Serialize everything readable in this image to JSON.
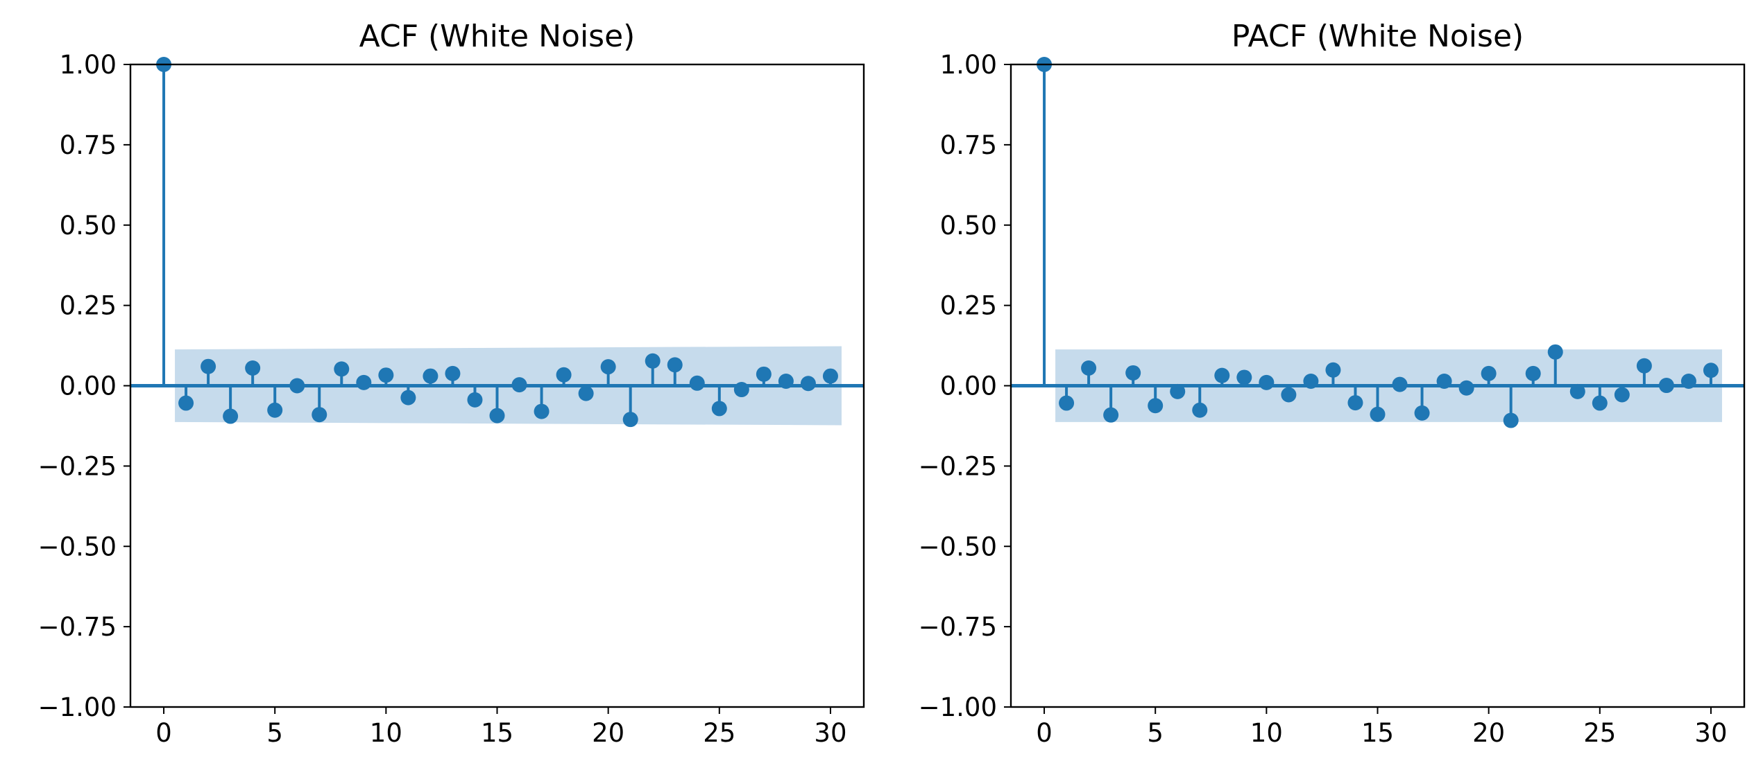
{
  "chart_data": [
    {
      "type": "stem",
      "title": "ACF (White Noise)",
      "xlabel": "",
      "ylabel": "",
      "xlim": [
        -1.5,
        31.5
      ],
      "ylim": [
        -1.0,
        1.0
      ],
      "x_ticks": [
        0,
        5,
        10,
        15,
        20,
        25,
        30
      ],
      "x_tick_labels": [
        "0",
        "5",
        "10",
        "15",
        "20",
        "25",
        "30"
      ],
      "y_ticks": [
        1.0,
        0.75,
        0.5,
        0.25,
        0.0,
        -0.25,
        -0.5,
        -0.75,
        -1.0
      ],
      "y_tick_labels": [
        "1.00",
        "0.75",
        "0.50",
        "0.25",
        "0.00",
        "−0.25",
        "−0.50",
        "−0.75",
        "−1.00"
      ],
      "grid": false,
      "x": [
        0,
        1,
        2,
        3,
        4,
        5,
        6,
        7,
        8,
        9,
        10,
        11,
        12,
        13,
        14,
        15,
        16,
        17,
        18,
        19,
        20,
        21,
        22,
        23,
        24,
        25,
        26,
        27,
        28,
        29,
        30
      ],
      "values": [
        1.0,
        -0.054,
        0.06,
        -0.095,
        0.055,
        -0.076,
        0.0,
        -0.09,
        0.052,
        0.01,
        0.033,
        -0.037,
        0.03,
        0.038,
        -0.044,
        -0.093,
        0.003,
        -0.08,
        0.034,
        -0.024,
        0.059,
        -0.105,
        0.077,
        0.065,
        0.008,
        -0.071,
        -0.012,
        0.036,
        0.014,
        0.007,
        0.03
      ],
      "confidence_band": {
        "x": [
          0.5,
          30.5
        ],
        "upper": [
          0.113,
          0.123
        ],
        "lower": [
          -0.113,
          -0.123
        ]
      }
    },
    {
      "type": "stem",
      "title": "PACF (White Noise)",
      "xlabel": "",
      "ylabel": "",
      "xlim": [
        -1.5,
        31.5
      ],
      "ylim": [
        -1.0,
        1.0
      ],
      "x_ticks": [
        0,
        5,
        10,
        15,
        20,
        25,
        30
      ],
      "x_tick_labels": [
        "0",
        "5",
        "10",
        "15",
        "20",
        "25",
        "30"
      ],
      "y_ticks": [
        1.0,
        0.75,
        0.5,
        0.25,
        0.0,
        -0.25,
        -0.5,
        -0.75,
        -1.0
      ],
      "y_tick_labels": [
        "1.00",
        "0.75",
        "0.50",
        "0.25",
        "0.00",
        "−0.25",
        "−0.50",
        "−0.75",
        "−1.00"
      ],
      "grid": false,
      "x": [
        0,
        1,
        2,
        3,
        4,
        5,
        6,
        7,
        8,
        9,
        10,
        11,
        12,
        13,
        14,
        15,
        16,
        17,
        18,
        19,
        20,
        21,
        22,
        23,
        24,
        25,
        26,
        27,
        28,
        29,
        30
      ],
      "values": [
        1.0,
        -0.054,
        0.055,
        -0.091,
        0.04,
        -0.062,
        -0.018,
        -0.076,
        0.032,
        0.026,
        0.01,
        -0.028,
        0.014,
        0.049,
        -0.053,
        -0.089,
        0.004,
        -0.085,
        0.014,
        -0.007,
        0.038,
        -0.108,
        0.038,
        0.105,
        -0.018,
        -0.054,
        -0.028,
        0.062,
        0.001,
        0.014,
        0.048
      ],
      "confidence_band": {
        "x": [
          0.5,
          30.5
        ],
        "upper": [
          0.113,
          0.113
        ],
        "lower": [
          -0.113,
          -0.113
        ]
      }
    }
  ],
  "colors": {
    "series": "#1f77b4",
    "band": "#c6dbec",
    "axes": "#000000"
  }
}
